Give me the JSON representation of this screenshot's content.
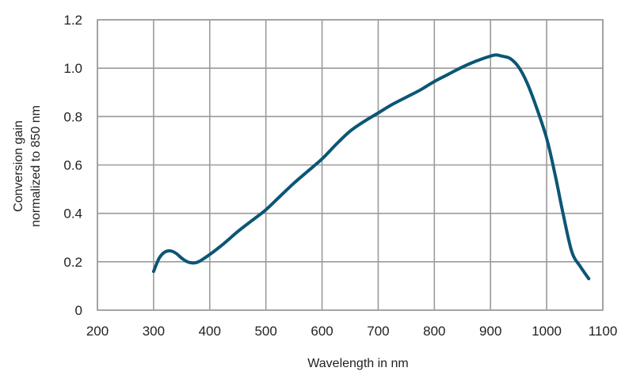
{
  "chart_data": {
    "type": "line",
    "title": "",
    "xlabel": "Wavelength in nm",
    "ylabel_lines": [
      "Conversion gain",
      "normalized to 850 nm"
    ],
    "xlim": [
      200,
      1100
    ],
    "ylim": [
      0,
      1.2
    ],
    "x_ticks": [
      200,
      300,
      400,
      500,
      600,
      700,
      800,
      900,
      1000,
      1100
    ],
    "y_ticks": [
      0,
      0.2,
      0.4,
      0.6,
      0.8,
      1.0,
      1.2
    ],
    "x_tick_labels": [
      "200",
      "300",
      "400",
      "500",
      "600",
      "700",
      "800",
      "900",
      "1000",
      "1100"
    ],
    "y_tick_labels": [
      "0",
      "0.2",
      "0.4",
      "0.6",
      "0.8",
      "1.0",
      "1.2"
    ],
    "grid": true,
    "legend": "none",
    "colors": {
      "series": "#0b5675",
      "grid": "#9a9a9a"
    },
    "series": [
      {
        "x": [
          300,
          310,
          320,
          330,
          340,
          350,
          360,
          370,
          380,
          400,
          425,
          450,
          475,
          500,
          525,
          550,
          575,
          600,
          625,
          650,
          675,
          700,
          725,
          750,
          775,
          800,
          825,
          850,
          875,
          900,
          910,
          920,
          935,
          950,
          965,
          980,
          1000,
          1015,
          1030,
          1045,
          1060,
          1075
        ],
        "y": [
          0.16,
          0.215,
          0.24,
          0.245,
          0.235,
          0.215,
          0.2,
          0.195,
          0.2,
          0.23,
          0.275,
          0.325,
          0.37,
          0.415,
          0.47,
          0.525,
          0.575,
          0.625,
          0.685,
          0.74,
          0.78,
          0.815,
          0.85,
          0.88,
          0.91,
          0.945,
          0.975,
          1.005,
          1.03,
          1.05,
          1.055,
          1.05,
          1.04,
          1.005,
          0.94,
          0.85,
          0.71,
          0.56,
          0.39,
          0.24,
          0.18,
          0.13
        ]
      }
    ]
  }
}
